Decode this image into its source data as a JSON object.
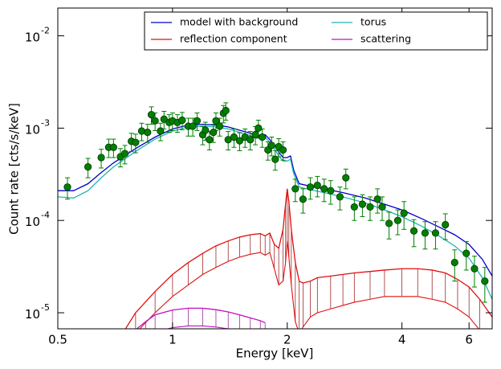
{
  "chart_data": {
    "type": "line",
    "x_label": "Energy [keV]",
    "y_label": "Count rate [cts/s/keV]",
    "xscale": "log",
    "yscale": "log",
    "xlim": [
      0.5,
      6.9
    ],
    "ylim": [
      6.7e-06,
      0.02
    ],
    "xticks": [
      0.5,
      1,
      2,
      4,
      6
    ],
    "yticks": [
      {
        "value": 1e-05,
        "label": "10",
        "exponent": "-5"
      },
      {
        "value": 0.0001,
        "label": "10",
        "exponent": "-4"
      },
      {
        "value": 0.001,
        "label": "10",
        "exponent": "-3"
      },
      {
        "value": 0.01,
        "label": "10",
        "exponent": "-2"
      }
    ],
    "legend": "upper right",
    "series": [
      {
        "name": "model with background",
        "color": "#0000cc",
        "x": [
          0.5,
          0.55,
          0.6,
          0.65,
          0.7,
          0.8,
          0.9,
          1.0,
          1.1,
          1.2,
          1.3,
          1.4,
          1.5,
          1.6,
          1.7,
          1.75,
          1.8,
          1.85,
          1.9,
          1.95,
          2.0,
          2.04,
          2.08,
          2.15,
          2.3,
          2.5,
          2.8,
          3.2,
          3.6,
          4.0,
          4.5,
          5.0,
          5.5,
          6.0,
          6.5,
          6.9
        ],
        "values": [
          0.00021,
          0.00021,
          0.00025,
          0.00033,
          0.00042,
          0.0006,
          0.0008,
          0.00098,
          0.00108,
          0.0011,
          0.00108,
          0.00103,
          0.00095,
          0.00088,
          0.00082,
          0.00085,
          0.00075,
          0.00065,
          0.00055,
          0.00048,
          0.00048,
          0.0005,
          0.00035,
          0.00025,
          0.000235,
          0.00022,
          0.0002,
          0.000175,
          0.00015,
          0.00013,
          0.000105,
          8.5e-05,
          7e-05,
          5.5e-05,
          3.8e-05,
          2.5e-05
        ]
      },
      {
        "name": "torus",
        "color": "#20b4b4",
        "x": [
          0.5,
          0.55,
          0.6,
          0.65,
          0.7,
          0.8,
          0.9,
          1.0,
          1.1,
          1.2,
          1.3,
          1.4,
          1.5,
          1.6,
          1.7,
          1.75,
          1.8,
          1.85,
          1.9,
          1.95,
          2.0,
          2.04,
          2.08,
          2.15,
          2.3,
          2.5,
          2.8,
          3.2,
          3.6,
          4.0,
          4.5,
          5.0,
          5.5,
          6.0,
          6.5,
          6.9
        ],
        "values": [
          0.00018,
          0.000175,
          0.00021,
          0.00029,
          0.00038,
          0.00056,
          0.00076,
          0.00093,
          0.00103,
          0.00105,
          0.00103,
          0.00098,
          0.0009,
          0.00083,
          0.00077,
          0.0008,
          0.0007,
          0.0006,
          0.0005,
          0.00044,
          0.00044,
          0.00046,
          0.00032,
          0.00023,
          0.000215,
          0.0002,
          0.00018,
          0.000155,
          0.00013,
          0.00011,
          8.7e-05,
          6.8e-05,
          5.3e-05,
          3.9e-05,
          2.4e-05,
          1.4e-05
        ]
      },
      {
        "name": "reflection component",
        "color": "#e01010",
        "hatch": "#a02828",
        "x": [
          0.72,
          0.8,
          0.9,
          1.0,
          1.1,
          1.2,
          1.3,
          1.4,
          1.5,
          1.6,
          1.7,
          1.75,
          1.8,
          1.85,
          1.9,
          1.95,
          1.98,
          2.0,
          2.02,
          2.05,
          2.1,
          2.15,
          2.2,
          2.3,
          2.4,
          2.6,
          2.8,
          3.0,
          3.3,
          3.6,
          4.0,
          4.4,
          4.8,
          5.2,
          5.6,
          6.0,
          6.4,
          6.9
        ],
        "values": [
          5e-06,
          1e-05,
          1.7e-05,
          2.6e-05,
          3.5e-05,
          4.4e-05,
          5.3e-05,
          6e-05,
          6.6e-05,
          7e-05,
          7.2e-05,
          6.8e-05,
          7.3e-05,
          5.5e-05,
          5e-05,
          8e-05,
          0.00015,
          0.00022,
          0.00016,
          8e-05,
          3.5e-05,
          2.2e-05,
          2.1e-05,
          2.2e-05,
          2.4e-05,
          2.5e-05,
          2.6e-05,
          2.7e-05,
          2.8e-05,
          2.9e-05,
          3e-05,
          3e-05,
          2.9e-05,
          2.7e-05,
          2.3e-05,
          1.9e-05,
          1.4e-05,
          9e-06
        ],
        "lower": [
          3e-06,
          6e-06,
          1e-05,
          1.5e-05,
          2e-05,
          2.6e-05,
          3.1e-05,
          3.6e-05,
          4e-05,
          4.3e-05,
          4.5e-05,
          4.2e-05,
          4.5e-05,
          3e-05,
          2e-05,
          2.2e-05,
          3.5e-05,
          6e-05,
          4e-05,
          2e-05,
          8e-06,
          6e-06,
          7e-06,
          9e-06,
          1e-05,
          1.1e-05,
          1.2e-05,
          1.3e-05,
          1.4e-05,
          1.5e-05,
          1.5e-05,
          1.5e-05,
          1.4e-05,
          1.3e-05,
          1.1e-05,
          9e-06,
          6.5e-06,
          4e-06
        ]
      },
      {
        "name": "scattering",
        "color": "#c010c0",
        "hatch": "#9a309a",
        "x": [
          0.78,
          0.85,
          0.9,
          1.0,
          1.1,
          1.2,
          1.3,
          1.4,
          1.5,
          1.6,
          1.7,
          1.75
        ],
        "values": [
          6e-06,
          8e-06,
          9.5e-06,
          1.07e-05,
          1.12e-05,
          1.12e-05,
          1.08e-05,
          1.02e-05,
          9.5e-06,
          8.8e-06,
          8.2e-06,
          7.8e-06
        ],
        "lower": [
          4e-06,
          5.5e-06,
          6.2e-06,
          6.9e-06,
          7.2e-06,
          7.2e-06,
          7e-06,
          6.7e-06,
          6.3e-06,
          5.9e-06,
          5.5e-06,
          5.2e-06
        ]
      }
    ],
    "points": {
      "color": "#008000",
      "x": [
        0.53,
        0.6,
        0.65,
        0.68,
        0.7,
        0.73,
        0.75,
        0.78,
        0.8,
        0.83,
        0.86,
        0.88,
        0.9,
        0.93,
        0.95,
        0.98,
        1.0,
        1.03,
        1.06,
        1.1,
        1.13,
        1.16,
        1.2,
        1.22,
        1.25,
        1.28,
        1.3,
        1.33,
        1.36,
        1.38,
        1.4,
        1.45,
        1.5,
        1.55,
        1.6,
        1.65,
        1.68,
        1.72,
        1.78,
        1.82,
        1.86,
        1.9,
        1.95,
        2.1,
        2.2,
        2.3,
        2.4,
        2.5,
        2.6,
        2.75,
        2.85,
        3.0,
        3.15,
        3.3,
        3.45,
        3.55,
        3.7,
        3.9,
        4.05,
        4.3,
        4.6,
        4.9,
        5.2,
        5.5,
        5.9,
        6.2,
        6.6
      ],
      "values": [
        0.00023,
        0.00038,
        0.00048,
        0.00062,
        0.00062,
        0.00049,
        0.00053,
        0.00072,
        0.0007,
        0.00093,
        0.0009,
        0.0014,
        0.0012,
        0.00093,
        0.00125,
        0.00115,
        0.0012,
        0.00115,
        0.00122,
        0.00105,
        0.00105,
        0.0012,
        0.00085,
        0.00095,
        0.00075,
        0.0009,
        0.0012,
        0.00105,
        0.00145,
        0.00155,
        0.00075,
        0.0008,
        0.00073,
        0.0008,
        0.00075,
        0.00085,
        0.001,
        0.0008,
        0.00058,
        0.00065,
        0.00046,
        0.00063,
        0.00058,
        0.00022,
        0.00017,
        0.00023,
        0.00024,
        0.00022,
        0.00021,
        0.00018,
        0.00029,
        0.00014,
        0.00015,
        0.00014,
        0.00017,
        0.00014,
        9.3e-05,
        0.0001,
        0.00012,
        7.7e-05,
        7.3e-05,
        7.3e-05,
        9e-05,
        3.5e-05,
        4.4e-05,
        3e-05,
        2.2e-05
      ],
      "errors": [
        6e-05,
        9e-05,
        0.00011,
        0.00014,
        0.00014,
        0.00011,
        0.00012,
        0.00016,
        0.00016,
        0.0002,
        0.0002,
        0.0003,
        0.00026,
        0.0002,
        0.00027,
        0.00025,
        0.00026,
        0.00025,
        0.00026,
        0.00023,
        0.00023,
        0.00026,
        0.00019,
        0.00021,
        0.00017,
        0.0002,
        0.00026,
        0.00023,
        0.00031,
        0.00033,
        0.00017,
        0.00018,
        0.00016,
        0.00018,
        0.00017,
        0.00019,
        0.00022,
        0.00018,
        0.00013,
        0.00015,
        0.00011,
        0.00014,
        0.00013,
        6e-05,
        5e-05,
        6e-05,
        6e-05,
        6e-05,
        6e-05,
        5e-05,
        7e-05,
        4e-05,
        4e-05,
        4e-05,
        5e-05,
        4e-05,
        3e-05,
        3e-05,
        4e-05,
        2.5e-05,
        2.4e-05,
        2.4e-05,
        2.8e-05,
        1.3e-05,
        1.5e-05,
        1.1e-05,
        9e-06
      ]
    }
  }
}
